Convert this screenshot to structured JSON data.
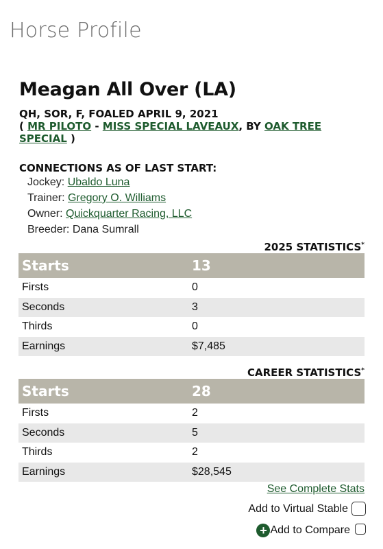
{
  "page": {
    "heading": "Horse Profile"
  },
  "horse": {
    "name": "Meagan All Over (LA)",
    "details": "QH, SOR, F, FOALED APRIL 9, 2021",
    "pedigree": {
      "open": "( ",
      "sire": "MR PILOTO",
      "dash": " - ",
      "dam": "MISS SPECIAL LAVEAUX",
      "by": ", BY ",
      "damsire": "OAK TREE SPECIAL",
      "close": " )"
    }
  },
  "connections": {
    "title": "CONNECTIONS AS OF LAST START:",
    "jockey_label": "Jockey:",
    "jockey": "Ubaldo Luna",
    "trainer_label": "Trainer:",
    "trainer": "Gregory O. Williams",
    "owner_label": "Owner:",
    "owner": "Quickquarter Racing, LLC",
    "breeder_label": "Breeder:",
    "breeder": "Dana Sumrall"
  },
  "stats_year": {
    "heading": "2025 STATISTICS",
    "asterisk": "*",
    "starts_label": "Starts",
    "starts": "13",
    "rows": [
      {
        "label": "Firsts",
        "value": "0"
      },
      {
        "label": "Seconds",
        "value": "3"
      },
      {
        "label": "Thirds",
        "value": "0"
      },
      {
        "label": "Earnings",
        "value": "$7,485"
      }
    ]
  },
  "stats_career": {
    "heading": "CAREER STATISTICS",
    "asterisk": "*",
    "starts_label": "Starts",
    "starts": "28",
    "rows": [
      {
        "label": "Firsts",
        "value": "2"
      },
      {
        "label": "Seconds",
        "value": "5"
      },
      {
        "label": "Thirds",
        "value": "2"
      },
      {
        "label": "Earnings",
        "value": "$28,545"
      }
    ]
  },
  "actions": {
    "see_complete_stats": "See Complete Stats",
    "add_virtual_stable": "Add to Virtual Stable",
    "add_compare": "Add to Compare",
    "plus_icon": "+"
  },
  "colors": {
    "link_green": "#1e5b2e",
    "table_header_bg": "#b8b5a9",
    "row_alt_bg": "#e8e8e8",
    "heading_gray": "#6b6b6b"
  }
}
